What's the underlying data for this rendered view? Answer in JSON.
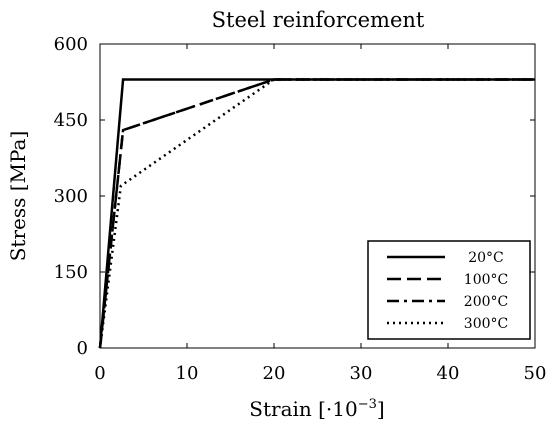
{
  "chart_data": {
    "type": "line",
    "title": "Steel reinforcement",
    "xlabel": "Strain [·10",
    "xlabel_exp": "−3",
    "xlabel_close": "]",
    "ylabel": "Stress [MPa]",
    "xlim": [
      0,
      50
    ],
    "ylim": [
      0,
      600
    ],
    "xticks": [
      "0",
      "10",
      "20",
      "30",
      "40",
      "50"
    ],
    "yticks": [
      "0",
      "150",
      "300",
      "450",
      "600"
    ],
    "grid": false,
    "legend_position": "bottom-right",
    "series": [
      {
        "name": "20°C",
        "style": "solid",
        "color": "#000000",
        "points": [
          [
            0,
            0
          ],
          [
            2.65,
            530
          ],
          [
            50,
            530
          ]
        ]
      },
      {
        "name": "100°C",
        "style": "dashed",
        "color": "#000000",
        "points": [
          [
            0,
            0
          ],
          [
            2.65,
            430
          ],
          [
            20,
            530
          ],
          [
            50,
            530
          ]
        ]
      },
      {
        "name": "200°C",
        "style": "dashdot",
        "color": "#000000",
        "points": [
          [
            0,
            0
          ],
          [
            2.65,
            430
          ],
          [
            20,
            530
          ],
          [
            50,
            530
          ]
        ]
      },
      {
        "name": "300°C",
        "style": "dotted",
        "color": "#000000",
        "points": [
          [
            0,
            0
          ],
          [
            2.4,
            320
          ],
          [
            20,
            530
          ],
          [
            50,
            530
          ]
        ]
      }
    ]
  }
}
